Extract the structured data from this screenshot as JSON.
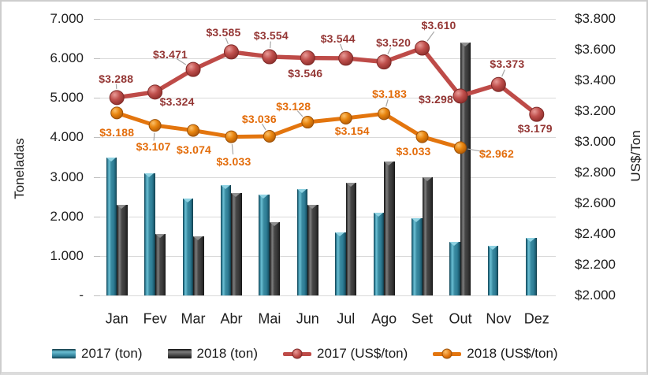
{
  "chart_data": {
    "type": "combo-bar-line",
    "title": "",
    "categories": [
      "Jan",
      "Fev",
      "Mar",
      "Abr",
      "Mai",
      "Jun",
      "Jul",
      "Ago",
      "Set",
      "Out",
      "Nov",
      "Dez"
    ],
    "grid": true,
    "legend_position": "bottom",
    "left_axis": {
      "title": "Toneladas",
      "min": 0,
      "max": 7000,
      "step": 1000,
      "tick_labels": [
        "7.000",
        "6.000",
        "5.000",
        "4.000",
        "3.000",
        "2.000",
        "1.000",
        "-"
      ]
    },
    "right_axis": {
      "title": "US$/Ton",
      "min": 2000,
      "max": 3800,
      "step": 200,
      "tick_labels": [
        "$3.800",
        "$3.600",
        "$3.400",
        "$3.200",
        "$3.000",
        "$2.800",
        "$2.600",
        "$2.400",
        "$2.200",
        "$2.000"
      ]
    },
    "series": [
      {
        "name": "2017 (ton)",
        "type": "bar",
        "axis": "left",
        "color": "#2E7E96",
        "values": [
          3500,
          3100,
          2450,
          2800,
          2550,
          2700,
          1600,
          2100,
          1950,
          1350,
          1250,
          1450
        ]
      },
      {
        "name": "2018 (ton)",
        "type": "bar",
        "axis": "left",
        "color": "#3A3A3A",
        "values": [
          2300,
          1550,
          1500,
          2600,
          1850,
          2300,
          2850,
          3400,
          3000,
          6400,
          null,
          null
        ]
      },
      {
        "name": "2017 (US$/ton)",
        "type": "line",
        "axis": "right",
        "color": "#BE4B48",
        "label_color": "#943634",
        "values": [
          3288,
          3324,
          3471,
          3585,
          3554,
          3546,
          3544,
          3520,
          3610,
          3298,
          3373,
          3179
        ],
        "labels": [
          "$3.288",
          "$3.324",
          "$3.471",
          "$3.585",
          "$3.554",
          "$3.546",
          "$3.544",
          "$3.520",
          "$3.610",
          "$3.298",
          "$3.373",
          "$3.179"
        ]
      },
      {
        "name": "2018 (US$/ton)",
        "type": "line",
        "axis": "right",
        "color": "#E3750E",
        "label_color": "#E36C0A",
        "values": [
          3188,
          3107,
          3074,
          3033,
          3036,
          3128,
          3154,
          3183,
          3033,
          2962,
          null,
          null
        ],
        "labels": [
          "$3.188",
          "$3.107",
          "$3.074",
          "$3.033",
          "$3.036",
          "$3.128",
          "$3.154",
          "$3.183",
          "$3.033",
          "$2.962"
        ]
      }
    ],
    "colors": {
      "gridline": "#D9D9D9",
      "leader_line": "#A6A6A6",
      "text": "#1F1F1F"
    }
  }
}
